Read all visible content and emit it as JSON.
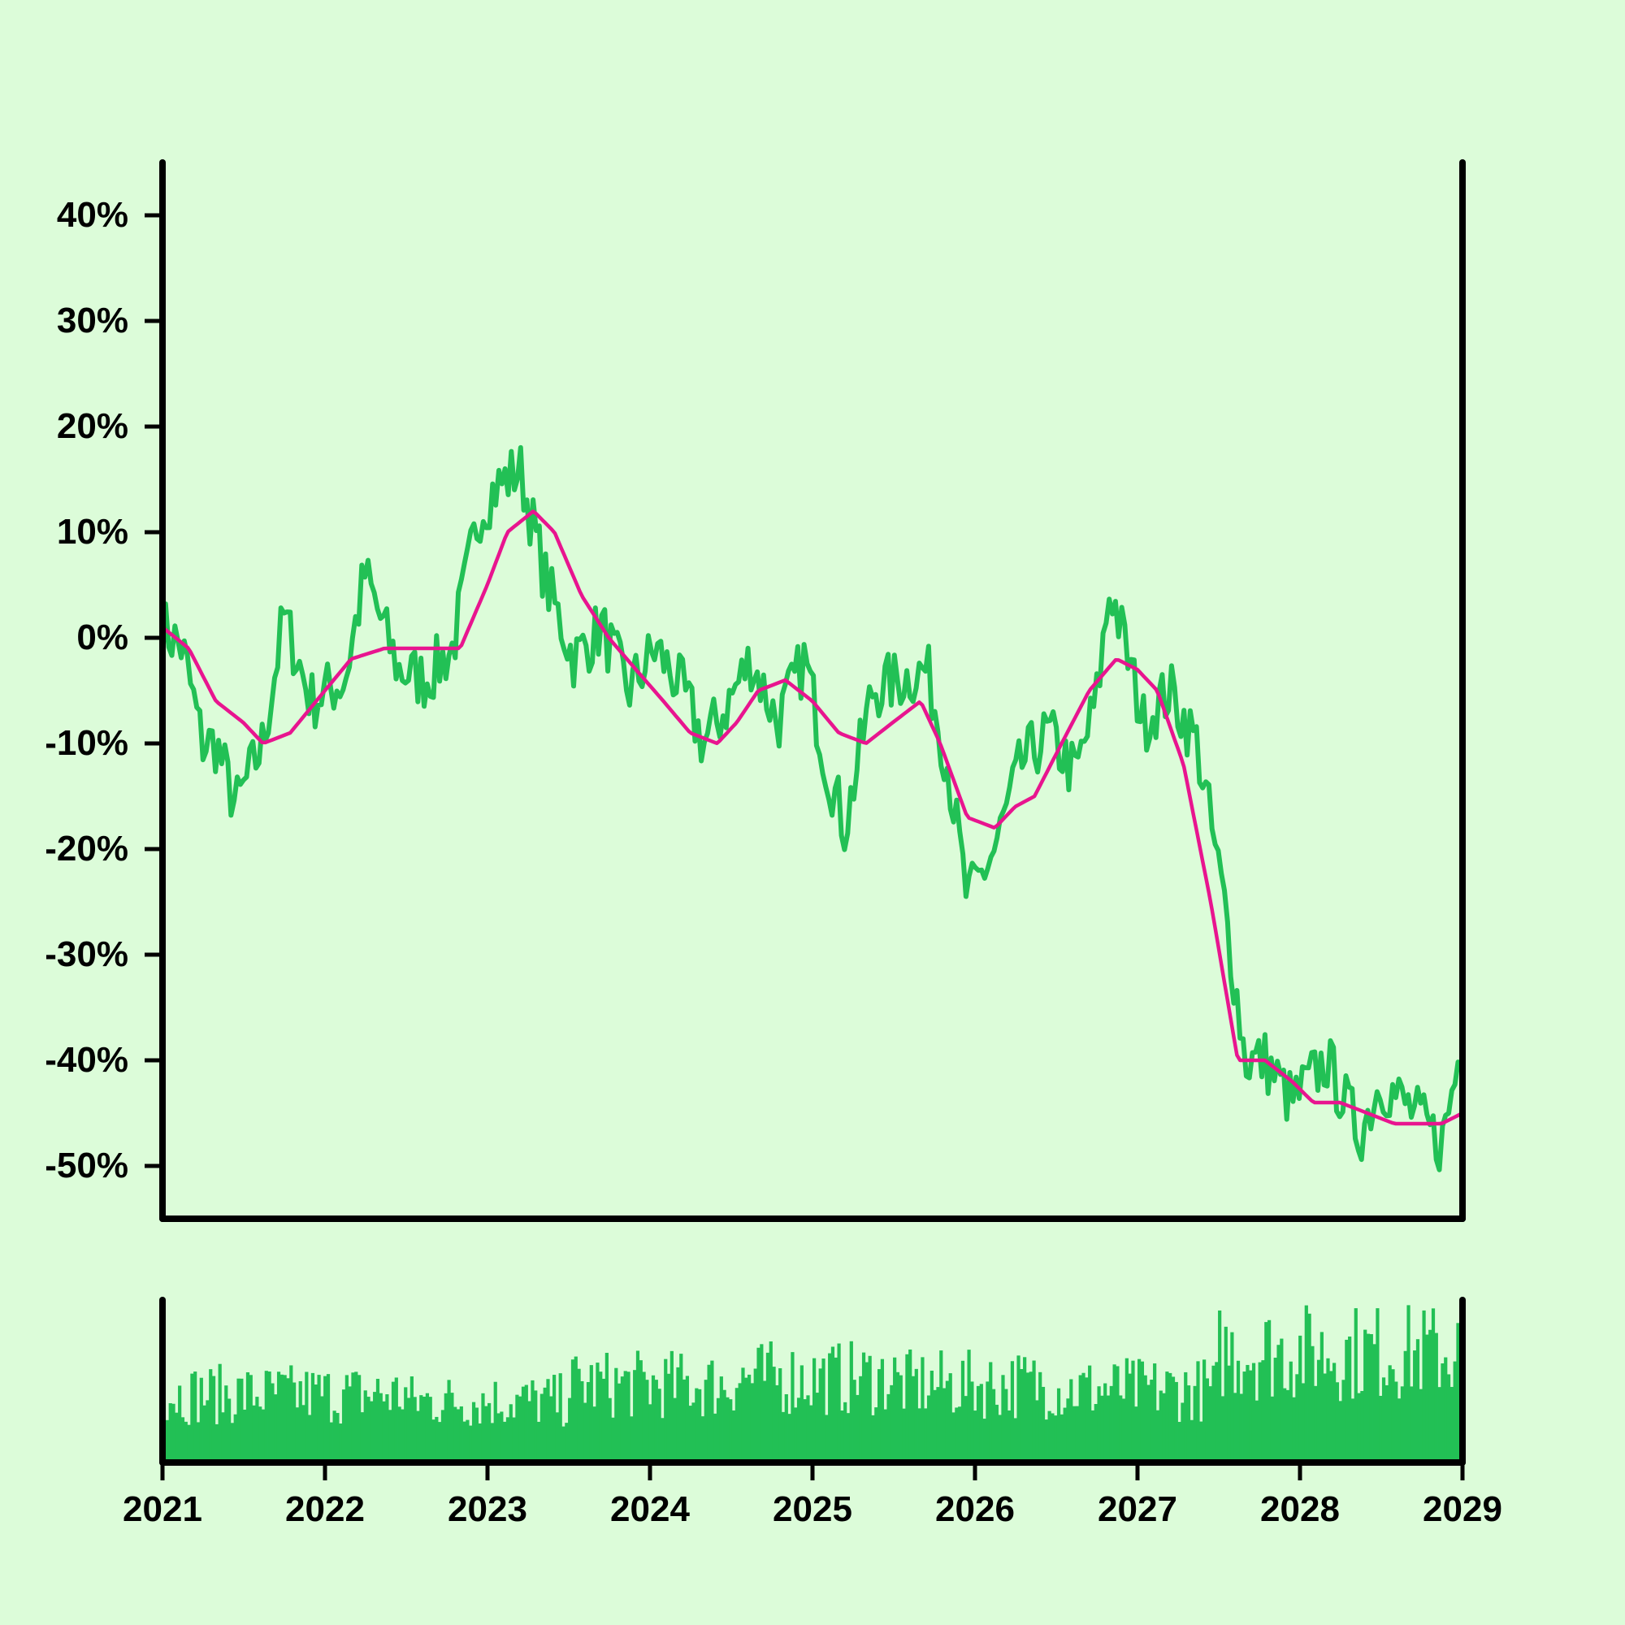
{
  "chart_data": {
    "type": "line",
    "title": "",
    "xlabel": "",
    "ylabel": "",
    "x_ticks": [
      "2021",
      "2022",
      "2023",
      "2024",
      "2025",
      "2026",
      "2027",
      "2028",
      "2029"
    ],
    "y_ticks": [
      "40%",
      "30%",
      "20%",
      "10%",
      "0%",
      "-10%",
      "-20%",
      "-30%",
      "-40%",
      "-50%"
    ],
    "xlim": [
      "2021-01-01",
      "2029-01-01"
    ],
    "ylim_percent": [
      -55,
      45
    ],
    "grid": false,
    "legend": "none",
    "colors": {
      "background": "#dcfcd9",
      "price": "#22c055",
      "moving_average": "#e8158f",
      "volume": "#22c055",
      "axis": "#000000"
    },
    "series": [
      {
        "role": "price",
        "x": [
          "2021-01-01",
          "2021-02-15",
          "2021-04-01",
          "2021-05-01",
          "2021-06-15",
          "2021-08-15",
          "2021-10-01",
          "2021-12-01",
          "2022-02-15",
          "2022-04-01",
          "2022-06-15",
          "2022-08-15",
          "2022-10-15",
          "2022-12-15",
          "2023-01-15",
          "2023-03-15",
          "2023-05-15",
          "2023-07-15",
          "2023-09-15",
          "2023-11-15",
          "2024-01-15",
          "2024-03-15",
          "2024-05-01",
          "2024-06-15",
          "2024-08-15",
          "2024-10-15",
          "2024-12-15",
          "2025-02-01",
          "2025-03-15",
          "2025-05-15",
          "2025-07-15",
          "2025-09-15",
          "2025-11-01",
          "2025-12-15",
          "2026-02-15",
          "2026-04-15",
          "2026-06-15",
          "2026-08-15",
          "2026-10-01",
          "2026-11-01",
          "2027-01-15",
          "2027-03-15",
          "2027-05-15",
          "2027-07-15",
          "2027-09-01",
          "2027-10-15",
          "2027-12-15",
          "2028-03-01",
          "2028-05-15",
          "2028-07-01",
          "2028-09-15",
          "2028-11-15",
          "2029-01-01"
        ],
        "y": [
          1,
          -1,
          -10,
          -10,
          -16,
          -10,
          2,
          -6,
          -4,
          6,
          -3,
          -4,
          -1,
          12,
          14,
          16,
          5,
          -2,
          1,
          -5,
          -1,
          -5,
          -10,
          -7,
          -2,
          -8,
          -2,
          -12,
          -18,
          -5,
          -4,
          -3,
          -12,
          -25,
          -20,
          -12,
          -9,
          -13,
          -6,
          5,
          -8,
          -5,
          -10,
          -25,
          -40,
          -40,
          -44,
          -40,
          -47,
          -42,
          -45,
          -48,
          -38
        ]
      },
      {
        "role": "moving_average",
        "x": [
          "2021-01-01",
          "2021-03-01",
          "2021-05-01",
          "2021-07-01",
          "2021-08-15",
          "2021-10-15",
          "2022-01-01",
          "2022-03-01",
          "2022-05-15",
          "2022-07-15",
          "2022-09-15",
          "2022-11-01",
          "2023-01-01",
          "2023-02-15",
          "2023-04-15",
          "2023-06-01",
          "2023-08-01",
          "2023-10-01",
          "2023-12-01",
          "2024-02-01",
          "2024-04-01",
          "2024-06-01",
          "2024-07-15",
          "2024-09-01",
          "2024-11-01",
          "2025-01-01",
          "2025-03-01",
          "2025-05-01",
          "2025-07-01",
          "2025-09-01",
          "2025-10-15",
          "2025-12-15",
          "2026-02-15",
          "2026-04-01",
          "2026-05-15",
          "2026-07-15",
          "2026-09-15",
          "2026-11-15",
          "2027-01-01",
          "2027-02-15",
          "2027-04-15",
          "2027-06-15",
          "2027-08-15",
          "2027-10-15",
          "2027-12-15",
          "2028-02-01",
          "2028-04-01",
          "2028-06-01",
          "2028-08-01",
          "2028-10-01",
          "2028-11-15",
          "2029-01-01"
        ],
        "y": [
          1,
          -1,
          -6,
          -8,
          -10,
          -9,
          -5,
          -2,
          -1,
          -1,
          -1,
          -1,
          5,
          10,
          12,
          10,
          4,
          0,
          -3,
          -6,
          -9,
          -10,
          -8,
          -5,
          -4,
          -6,
          -9,
          -10,
          -8,
          -6,
          -10,
          -17,
          -18,
          -16,
          -15,
          -10,
          -5,
          -2,
          -3,
          -5,
          -12,
          -25,
          -40,
          -40,
          -42,
          -44,
          -44,
          -45,
          -46,
          -46,
          -46,
          -45
        ]
      }
    ],
    "volume": {
      "ylim": [
        0,
        1
      ],
      "segments": [
        {
          "from": "2021-01-01",
          "to": "2022-07-01",
          "level": 0.42
        },
        {
          "from": "2022-07-01",
          "to": "2023-07-01",
          "level": 0.38
        },
        {
          "from": "2023-07-01",
          "to": "2024-07-01",
          "level": 0.48
        },
        {
          "from": "2024-07-01",
          "to": "2025-07-01",
          "level": 0.52
        },
        {
          "from": "2025-07-01",
          "to": "2026-07-01",
          "level": 0.48
        },
        {
          "from": "2026-07-01",
          "to": "2027-07-01",
          "level": 0.45
        },
        {
          "from": "2027-07-01",
          "to": "2029-01-01",
          "level": 0.68
        }
      ]
    }
  }
}
